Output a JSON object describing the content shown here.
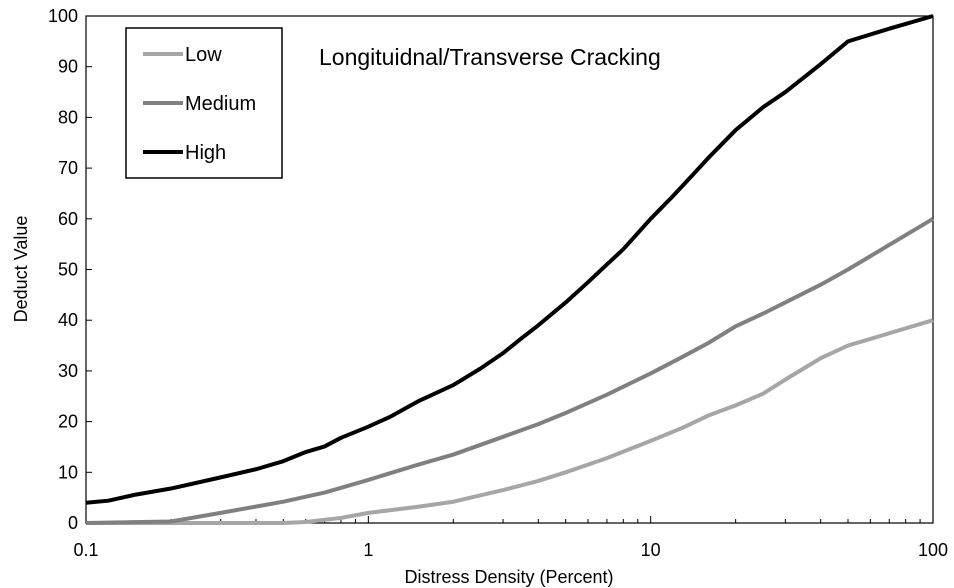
{
  "chart_data": {
    "type": "line",
    "title": "Longituidnal/Transverse Cracking",
    "xlabel": "Distress Density (Percent)",
    "ylabel": "Deduct Value",
    "x_scale": "log",
    "xlim": [
      0.1,
      100
    ],
    "ylim": [
      0,
      100
    ],
    "x_ticks": [
      0.1,
      1,
      10,
      100
    ],
    "x_tick_labels": [
      "0.1",
      "1",
      "10",
      "100"
    ],
    "y_ticks": [
      0,
      10,
      20,
      30,
      40,
      50,
      60,
      70,
      80,
      90,
      100
    ],
    "y_tick_labels": [
      "0",
      "10",
      "20",
      "30",
      "40",
      "50",
      "60",
      "70",
      "80",
      "90",
      "100"
    ],
    "grid": false,
    "legend_position": "top-left",
    "series": [
      {
        "name": "Low",
        "color": "#a6a6a6",
        "points": [
          [
            0.1,
            0
          ],
          [
            0.5,
            0
          ],
          [
            0.6,
            0.2
          ],
          [
            0.8,
            1
          ],
          [
            1,
            2
          ],
          [
            1.5,
            3.2
          ],
          [
            2,
            4.2
          ],
          [
            3,
            6.5
          ],
          [
            4,
            8.3
          ],
          [
            5,
            10
          ],
          [
            7,
            12.8
          ],
          [
            10,
            16.2
          ],
          [
            13,
            18.8
          ],
          [
            16,
            21.2
          ],
          [
            20,
            23.2
          ],
          [
            25,
            25.5
          ],
          [
            30,
            28.3
          ],
          [
            40,
            32.5
          ],
          [
            50,
            35
          ],
          [
            100,
            40
          ]
        ]
      },
      {
        "name": "Medium",
        "color": "#808080",
        "points": [
          [
            0.1,
            0
          ],
          [
            0.2,
            0.3
          ],
          [
            0.3,
            2
          ],
          [
            0.5,
            4.2
          ],
          [
            0.7,
            6
          ],
          [
            1,
            8.5
          ],
          [
            1.5,
            11.5
          ],
          [
            2,
            13.5
          ],
          [
            3,
            17
          ],
          [
            4,
            19.5
          ],
          [
            5,
            21.7
          ],
          [
            7,
            25.3
          ],
          [
            10,
            29.5
          ],
          [
            13,
            32.8
          ],
          [
            16,
            35.5
          ],
          [
            20,
            38.8
          ],
          [
            25,
            41.3
          ],
          [
            30,
            43.5
          ],
          [
            40,
            47
          ],
          [
            50,
            50
          ],
          [
            100,
            60
          ]
        ]
      },
      {
        "name": "High",
        "color": "#000000",
        "points": [
          [
            0.1,
            4
          ],
          [
            0.12,
            4.4
          ],
          [
            0.15,
            5.6
          ],
          [
            0.2,
            6.8
          ],
          [
            0.3,
            9
          ],
          [
            0.4,
            10.6
          ],
          [
            0.5,
            12.2
          ],
          [
            0.6,
            14
          ],
          [
            0.7,
            15.1
          ],
          [
            0.8,
            16.8
          ],
          [
            1,
            19
          ],
          [
            1.2,
            21
          ],
          [
            1.5,
            24
          ],
          [
            2,
            27.2
          ],
          [
            2.5,
            30.5
          ],
          [
            3,
            33.5
          ],
          [
            3.5,
            36.5
          ],
          [
            4,
            39
          ],
          [
            5,
            43.5
          ],
          [
            6,
            47.5
          ],
          [
            7,
            51
          ],
          [
            8,
            54
          ],
          [
            10,
            60
          ],
          [
            12,
            64.5
          ],
          [
            14,
            68.5
          ],
          [
            16,
            72
          ],
          [
            20,
            77.5
          ],
          [
            25,
            82
          ],
          [
            30,
            85
          ],
          [
            40,
            90.5
          ],
          [
            50,
            95
          ],
          [
            70,
            97.5
          ],
          [
            100,
            100
          ]
        ]
      }
    ]
  }
}
